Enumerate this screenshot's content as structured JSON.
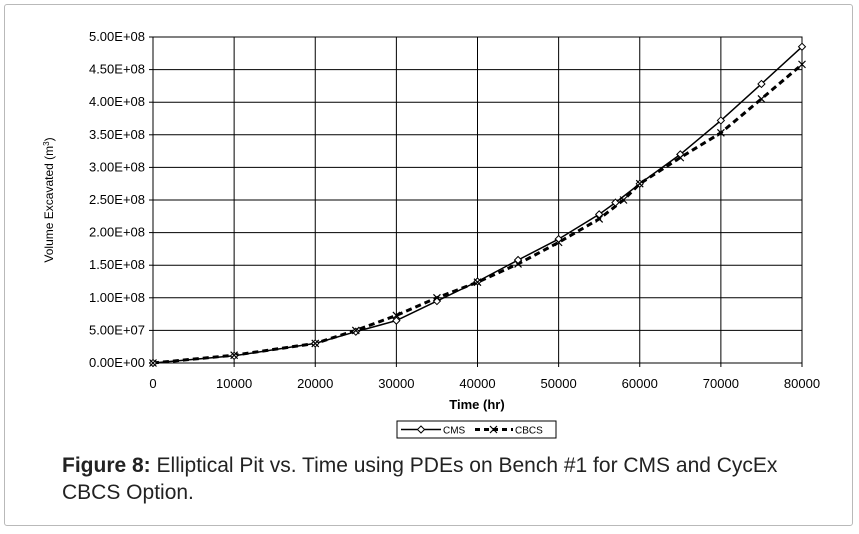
{
  "caption": {
    "label": "Figure 8:",
    "text": " Elliptical Pit vs. Time using PDEs on Bench #1 for CMS and CycEx CBCS Option."
  },
  "chart_data": {
    "type": "line",
    "xlabel": "Time (hr)",
    "ylabel_main": "Volume Excavated (m",
    "ylabel_sup": "3",
    "ylabel_close": ")",
    "xlim": [
      0,
      80000
    ],
    "ylim": [
      0,
      500000000
    ],
    "x_ticks": [
      0,
      10000,
      20000,
      30000,
      40000,
      50000,
      60000,
      70000,
      80000
    ],
    "x_tick_labels": [
      "0",
      "10000",
      "20000",
      "30000",
      "40000",
      "50000",
      "60000",
      "70000",
      "80000"
    ],
    "y_ticks": [
      0,
      50000000,
      100000000,
      150000000,
      200000000,
      250000000,
      300000000,
      350000000,
      400000000,
      450000000,
      500000000
    ],
    "y_tick_labels": [
      "0.00E+00",
      "5.00E+07",
      "1.00E+08",
      "1.50E+08",
      "2.00E+08",
      "2.50E+08",
      "3.00E+08",
      "3.50E+08",
      "4.00E+08",
      "4.50E+08",
      "5.00E+08"
    ],
    "grid": true,
    "legend_position": "bottom",
    "series": [
      {
        "name": "CMS",
        "style": "solid",
        "marker": "diamond",
        "color": "#000000",
        "x": [
          0,
          10000,
          20000,
          25000,
          30000,
          35000,
          40000,
          45000,
          50000,
          55000,
          57000,
          60000,
          65000,
          70000,
          75000,
          80000
        ],
        "y": [
          0,
          11000000,
          30000000,
          48000000,
          65000000,
          95000000,
          125000000,
          158000000,
          190000000,
          228000000,
          246000000,
          275000000,
          320000000,
          372000000,
          428000000,
          485000000
        ]
      },
      {
        "name": "CBCS",
        "style": "dashed",
        "marker": "x",
        "color": "#000000",
        "x": [
          0,
          10000,
          20000,
          25000,
          30000,
          35000,
          40000,
          45000,
          50000,
          55000,
          58000,
          60000,
          65000,
          70000,
          75000,
          80000
        ],
        "y": [
          0,
          12000000,
          30000000,
          50000000,
          73000000,
          100000000,
          124000000,
          152000000,
          185000000,
          221000000,
          250000000,
          275000000,
          315000000,
          353000000,
          405000000,
          458000000
        ]
      }
    ]
  }
}
